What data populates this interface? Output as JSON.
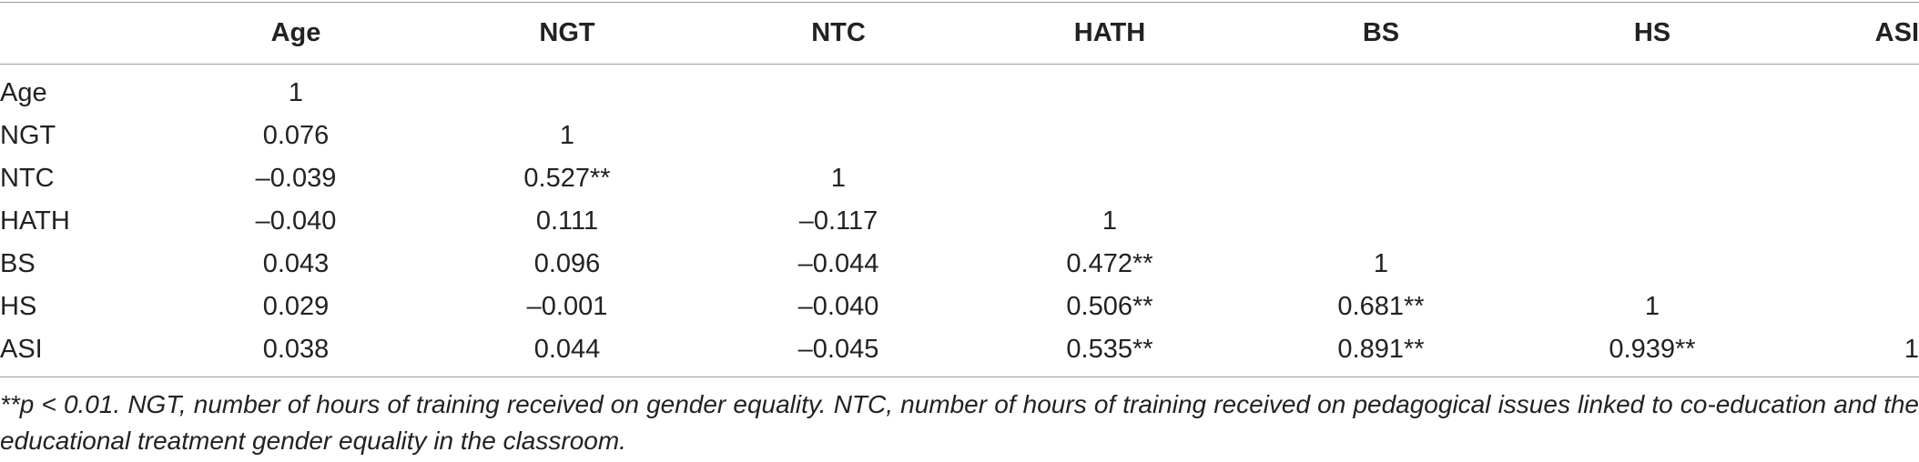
{
  "table": {
    "header": [
      "Age",
      "NGT",
      "NTC",
      "HATH",
      "BS",
      "HS",
      "ASI"
    ],
    "rows": [
      {
        "label": "Age",
        "cells": [
          "1",
          null,
          null,
          null,
          null,
          null,
          null
        ]
      },
      {
        "label": "NGT",
        "cells": [
          "0.076",
          "1",
          null,
          null,
          null,
          null,
          null
        ]
      },
      {
        "label": "NTC",
        "cells": [
          "–0.039",
          "0.527**",
          "1",
          null,
          null,
          null,
          null
        ]
      },
      {
        "label": "HATH",
        "cells": [
          "–0.040",
          "0.111",
          "–0.117",
          "1",
          null,
          null,
          null
        ]
      },
      {
        "label": "BS",
        "cells": [
          "0.043",
          "0.096",
          "–0.044",
          "0.472**",
          "1",
          null,
          null
        ]
      },
      {
        "label": "HS",
        "cells": [
          "0.029",
          "–0.001",
          "–0.040",
          "0.506**",
          "0.681**",
          "1",
          null
        ]
      },
      {
        "label": "ASI",
        "cells": [
          "0.038",
          "0.044",
          "–0.045",
          "0.535**",
          "0.891**",
          "0.939**",
          "1"
        ]
      }
    ]
  },
  "footnote": "**p < 0.01. NGT, number of hours of training received on gender equality. NTC, number of hours of training received on pedagogical issues linked to co-education and the educational treatment gender equality in the classroom."
}
